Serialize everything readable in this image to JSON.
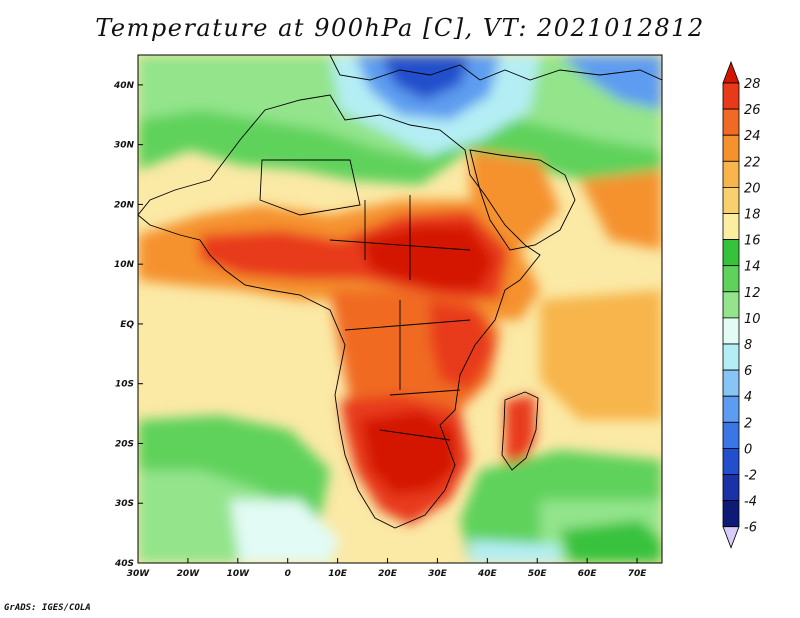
{
  "title": "Temperature at 900hPa [C], VT: 2021012812",
  "footer": "GrADS: IGES/COLA",
  "map": {
    "region": "Africa",
    "lon_range": [
      -30,
      75
    ],
    "lat_range": [
      -40,
      45
    ],
    "x_ticks": [
      "30W",
      "20W",
      "10W",
      "0",
      "10E",
      "20E",
      "30E",
      "40E",
      "50E",
      "60E",
      "70E"
    ],
    "y_ticks": [
      "40N",
      "30N",
      "20N",
      "10N",
      "EQ",
      "10S",
      "20S",
      "30S",
      "40S"
    ]
  },
  "colorbar": {
    "labels": [
      "28",
      "26",
      "24",
      "22",
      "20",
      "18",
      "16",
      "14",
      "12",
      "10",
      "8",
      "6",
      "4",
      "2",
      "0",
      "-2",
      "-4",
      "-6"
    ],
    "colors": [
      "#d41500",
      "#e83a1a",
      "#f06a24",
      "#f5922e",
      "#f7b54c",
      "#f9d06e",
      "#fbeea0",
      "#37c23c",
      "#5fd25c",
      "#93e48b",
      "#e2fbf5",
      "#b4eef4",
      "#88c4f4",
      "#5d9cf0",
      "#3a76e6",
      "#2250cc",
      "#1a32a8",
      "#0e1a78",
      "#d8ccf8"
    ]
  },
  "palette": {
    "ocean_bg": "#fbe4a0",
    "outline": "#000000"
  },
  "chart_data": {
    "type": "heatmap",
    "title": "Temperature at 900hPa [C], VT: 2021012812",
    "variable": "Temperature at 900hPa",
    "units": "C",
    "valid_time": "2021012812",
    "x_ticks": [
      "30W",
      "20W",
      "10W",
      "0",
      "10E",
      "20E",
      "30E",
      "40E",
      "50E",
      "60E",
      "70E"
    ],
    "y_ticks": [
      "40N",
      "30N",
      "20N",
      "10N",
      "EQ",
      "10S",
      "20S",
      "30S",
      "40S"
    ],
    "colorbar_range": [
      -6,
      28
    ],
    "colorbar_step": 2
  }
}
